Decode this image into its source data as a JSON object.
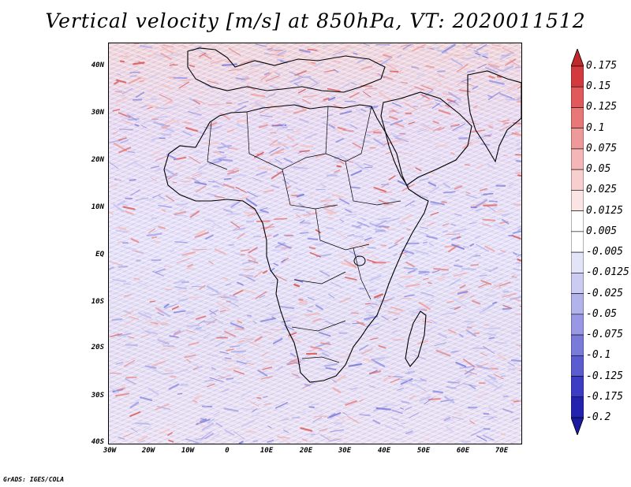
{
  "title": "Vertical velocity [m/s] at 850hPa, VT: 2020011512",
  "footer": "GrADS: IGES/COLA",
  "lat_labels": [
    "40N",
    "30N",
    "20N",
    "10N",
    "EQ",
    "10S",
    "20S",
    "30S",
    "40S"
  ],
  "lon_labels": [
    "30W",
    "20W",
    "10W",
    "0",
    "10E",
    "20E",
    "30E",
    "40E",
    "50E",
    "60E",
    "70E"
  ],
  "colorbar": {
    "labels": [
      "0.175",
      "0.15",
      "0.125",
      "0.1",
      "0.075",
      "0.05",
      "0.025",
      "0.0125",
      "0.005",
      "-0.005",
      "-0.0125",
      "-0.025",
      "-0.05",
      "-0.075",
      "-0.1",
      "-0.125",
      "-0.175",
      "-0.2"
    ],
    "colors": [
      "#c0282c",
      "#d33a3e",
      "#e05a5c",
      "#e87878",
      "#ef9a9a",
      "#f4b6b6",
      "#f8cfcf",
      "#fbe4e4",
      "#ffffff",
      "#ffffff",
      "#e4e4f8",
      "#ccccf2",
      "#b3b3ec",
      "#9898e4",
      "#7a7adb",
      "#5c5cd1",
      "#3c3cc4",
      "#2323b0",
      "#1a1aa0"
    ]
  },
  "colors": {
    "land_tint": "#ecd9e3",
    "ocean_tint": "#e6e3f7",
    "red_field": "#e88a8a",
    "blue_field": "#8a8ae0",
    "border": "#000000"
  }
}
